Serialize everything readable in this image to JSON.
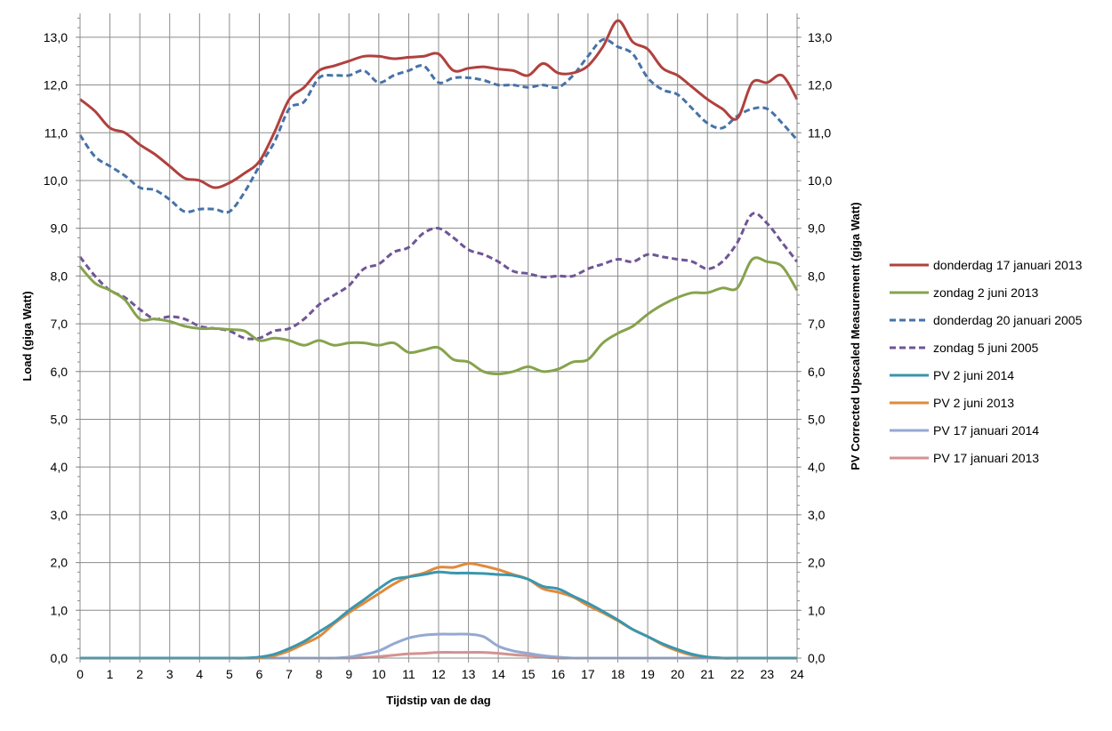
{
  "chart_data": {
    "type": "line",
    "title": "",
    "xlabel": "Tijdstip van de dag",
    "ylabel": "Load (giga Watt)",
    "y2label": "PV Corrected Upscaled Measurement (giga Watt)",
    "xlim": [
      0,
      24
    ],
    "ylim": [
      0,
      13.5
    ],
    "grid": true,
    "legend": "right",
    "x_ticks": [
      "0",
      "1",
      "2",
      "3",
      "4",
      "5",
      "6",
      "7",
      "8",
      "9",
      "10",
      "11",
      "12",
      "13",
      "14",
      "15",
      "16",
      "17",
      "18",
      "19",
      "20",
      "21",
      "22",
      "23",
      "24"
    ],
    "y_ticks": [
      "0,0",
      "1,0",
      "2,0",
      "3,0",
      "4,0",
      "5,0",
      "6,0",
      "7,0",
      "8,0",
      "9,0",
      "10,0",
      "11,0",
      "12,0",
      "13,0"
    ],
    "y_tick_values": [
      0,
      1,
      2,
      3,
      4,
      5,
      6,
      7,
      8,
      9,
      10,
      11,
      12,
      13
    ],
    "x": [
      0,
      0.5,
      1,
      1.5,
      2,
      2.5,
      3,
      3.5,
      4,
      4.5,
      5,
      5.5,
      6,
      6.5,
      7,
      7.5,
      8,
      8.5,
      9,
      9.5,
      10,
      10.5,
      11,
      11.5,
      12,
      12.5,
      13,
      13.5,
      14,
      14.5,
      15,
      15.5,
      16,
      16.5,
      17,
      17.5,
      18,
      18.5,
      19,
      19.5,
      20,
      20.5,
      21,
      21.5,
      22,
      22.5,
      23,
      23.5,
      24
    ],
    "series": [
      {
        "name": "donderdag 17 januari 2013",
        "color": "#b0413e",
        "dashed": false,
        "values": [
          11.7,
          11.45,
          11.1,
          11.0,
          10.75,
          10.55,
          10.3,
          10.05,
          10.0,
          9.85,
          9.95,
          10.15,
          10.4,
          11.0,
          11.7,
          11.95,
          12.3,
          12.4,
          12.5,
          12.6,
          12.6,
          12.55,
          12.58,
          12.6,
          12.65,
          12.3,
          12.35,
          12.38,
          12.33,
          12.3,
          12.2,
          12.45,
          12.25,
          12.25,
          12.4,
          12.8,
          13.35,
          12.9,
          12.75,
          12.35,
          12.2,
          11.95,
          11.7,
          11.5,
          11.3,
          12.05,
          12.05,
          12.2,
          11.7
        ]
      },
      {
        "name": "zondag 2 juni 2013",
        "color": "#86a34d",
        "dashed": false,
        "values": [
          8.2,
          7.85,
          7.7,
          7.5,
          7.1,
          7.1,
          7.05,
          6.95,
          6.9,
          6.9,
          6.88,
          6.85,
          6.65,
          6.7,
          6.65,
          6.55,
          6.65,
          6.55,
          6.6,
          6.6,
          6.55,
          6.6,
          6.4,
          6.45,
          6.5,
          6.25,
          6.2,
          6.0,
          5.95,
          6.0,
          6.1,
          6.0,
          6.05,
          6.2,
          6.25,
          6.6,
          6.8,
          6.95,
          7.2,
          7.4,
          7.55,
          7.65,
          7.65,
          7.75,
          7.75,
          8.35,
          8.3,
          8.2,
          7.7
        ]
      },
      {
        "name": "donderdag 20 januari 2005",
        "color": "#4672a8",
        "dashed": true,
        "values": [
          10.95,
          10.5,
          10.3,
          10.1,
          9.85,
          9.8,
          9.6,
          9.35,
          9.4,
          9.4,
          9.35,
          9.75,
          10.3,
          10.8,
          11.5,
          11.65,
          12.15,
          12.2,
          12.2,
          12.3,
          12.05,
          12.2,
          12.3,
          12.4,
          12.05,
          12.15,
          12.15,
          12.1,
          12.0,
          12.0,
          11.95,
          12.0,
          11.95,
          12.2,
          12.6,
          12.95,
          12.8,
          12.65,
          12.15,
          11.9,
          11.8,
          11.5,
          11.2,
          11.1,
          11.35,
          11.5,
          11.5,
          11.2,
          10.85
        ]
      },
      {
        "name": "zondag 5 juni 2005",
        "color": "#6f5597",
        "dashed": true,
        "values": [
          8.4,
          8.0,
          7.7,
          7.55,
          7.3,
          7.1,
          7.15,
          7.1,
          6.95,
          6.9,
          6.85,
          6.7,
          6.7,
          6.85,
          6.9,
          7.1,
          7.4,
          7.6,
          7.8,
          8.15,
          8.25,
          8.5,
          8.6,
          8.9,
          9.0,
          8.8,
          8.55,
          8.45,
          8.3,
          8.1,
          8.05,
          7.98,
          8.0,
          8.0,
          8.15,
          8.25,
          8.35,
          8.3,
          8.45,
          8.4,
          8.35,
          8.3,
          8.15,
          8.3,
          8.7,
          9.3,
          9.1,
          8.7,
          8.3
        ]
      },
      {
        "name": "PV 2 juni 2014",
        "color": "#3a96ae",
        "dashed": false,
        "values": [
          0,
          0,
          0,
          0,
          0,
          0,
          0,
          0,
          0,
          0,
          0,
          0,
          0.02,
          0.08,
          0.2,
          0.35,
          0.55,
          0.75,
          1.0,
          1.22,
          1.45,
          1.65,
          1.7,
          1.75,
          1.8,
          1.78,
          1.78,
          1.77,
          1.75,
          1.73,
          1.65,
          1.5,
          1.45,
          1.3,
          1.15,
          0.98,
          0.8,
          0.6,
          0.45,
          0.3,
          0.18,
          0.08,
          0.02,
          0,
          0,
          0,
          0,
          0,
          0
        ]
      },
      {
        "name": "PV 2 juni 2013",
        "color": "#e08a3c",
        "dashed": false,
        "values": [
          0,
          0,
          0,
          0,
          0,
          0,
          0,
          0,
          0,
          0,
          0,
          0,
          0,
          0.05,
          0.15,
          0.3,
          0.45,
          0.72,
          0.95,
          1.15,
          1.35,
          1.55,
          1.7,
          1.78,
          1.9,
          1.9,
          1.98,
          1.93,
          1.85,
          1.75,
          1.65,
          1.45,
          1.38,
          1.28,
          1.1,
          0.95,
          0.78,
          0.6,
          0.45,
          0.28,
          0.15,
          0.06,
          0.02,
          0,
          0,
          0,
          0,
          0,
          0
        ]
      },
      {
        "name": "PV 17 januari 2014",
        "color": "#94a9d2",
        "dashed": false,
        "values": [
          0,
          0,
          0,
          0,
          0,
          0,
          0,
          0,
          0,
          0,
          0,
          0,
          0,
          0,
          0,
          0,
          0,
          0,
          0.02,
          0.08,
          0.15,
          0.3,
          0.42,
          0.48,
          0.5,
          0.5,
          0.5,
          0.45,
          0.25,
          0.15,
          0.1,
          0.05,
          0.02,
          0,
          0,
          0,
          0,
          0,
          0,
          0,
          0,
          0,
          0,
          0,
          0,
          0,
          0,
          0,
          0
        ]
      },
      {
        "name": "PV 17 januari 2013",
        "color": "#d39292",
        "dashed": false,
        "values": [
          0,
          0,
          0,
          0,
          0,
          0,
          0,
          0,
          0,
          0,
          0,
          0,
          0,
          0,
          0,
          0,
          0,
          0,
          0,
          0.01,
          0.03,
          0.06,
          0.09,
          0.1,
          0.12,
          0.12,
          0.12,
          0.12,
          0.1,
          0.07,
          0.05,
          0.02,
          0,
          0,
          0,
          0,
          0,
          0,
          0,
          0,
          0,
          0,
          0,
          0,
          0,
          0,
          0,
          0,
          0
        ]
      }
    ]
  }
}
